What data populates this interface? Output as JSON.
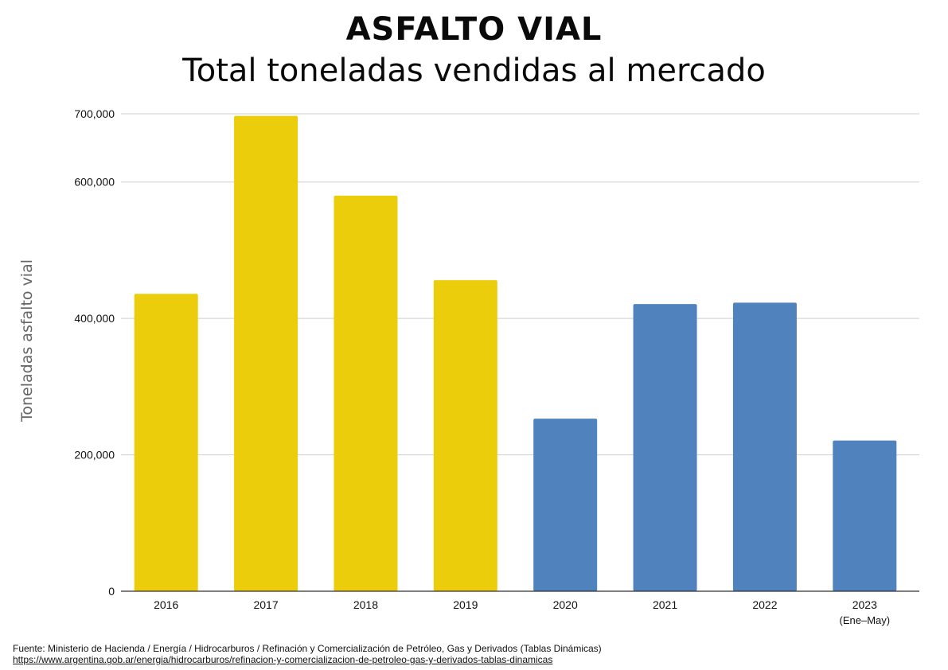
{
  "title": "ASFALTO VIAL",
  "subtitle": "Total toneladas vendidas al mercado",
  "chart_data": {
    "type": "bar",
    "categories": [
      "2016",
      "2017",
      "2018",
      "2019",
      "2020",
      "2021",
      "2022",
      "2023"
    ],
    "category_sublabels": [
      "",
      "",
      "",
      "",
      "",
      "",
      "",
      "(Ene–May)"
    ],
    "values": [
      436000,
      697000,
      580000,
      456000,
      253000,
      421000,
      423000,
      221000
    ],
    "bar_colors": [
      "#ebcd0b",
      "#ebcd0b",
      "#ebcd0b",
      "#ebcd0b",
      "#5082bd",
      "#5082bd",
      "#5082bd",
      "#5082bd"
    ],
    "ylabel": "Toneladas asfalto vial",
    "xlabel": "",
    "ylim": [
      0,
      700000
    ],
    "yticks": [
      {
        "value": 0,
        "label": "0"
      },
      {
        "value": 200000,
        "label": "200,000"
      },
      {
        "value": 400000,
        "label": "400,000"
      },
      {
        "value": 600000,
        "label": "600,000"
      },
      {
        "value": 700000,
        "label": "700,000"
      }
    ],
    "grid": true,
    "legend": "none"
  },
  "footer": {
    "source": "Fuente: Ministerio de Hacienda / Energía / Hidrocarburos / Refinación y Comercialización de Petróleo, Gas y Derivados (Tablas Dinámicas)",
    "url": "https://www.argentina.gob.ar/energia/hidrocarburos/refinacion-y-comercializacion-de-petroleo-gas-y-derivados-tablas-dinamicas"
  }
}
